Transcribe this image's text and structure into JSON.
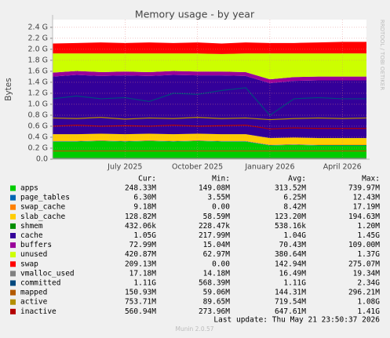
{
  "chart_data": {
    "type": "area",
    "title": "Memory usage - by year",
    "y_label": "Bytes",
    "side_text": "RRDTOOL / TOBI OETIKER",
    "x": [
      "2025-04",
      "2025-05",
      "2025-06",
      "2025-07",
      "2025-08",
      "2025-09",
      "2025-10",
      "2025-11",
      "2025-12",
      "2026-01",
      "2026-02",
      "2026-03",
      "2026-04",
      "2026-05"
    ],
    "xlim": [
      "2025-04",
      "2026-05"
    ],
    "xticks": [
      {
        "value": "2025-07",
        "label": "July 2025"
      },
      {
        "value": "2025-10",
        "label": "October 2025"
      },
      {
        "value": "2026-01",
        "label": "January 2026"
      },
      {
        "value": "2026-04",
        "label": "April 2026"
      }
    ],
    "ylim": [
      0,
      2.54
    ],
    "yticks": [
      {
        "value": 0,
        "label": "0.0"
      },
      {
        "value": 0.2,
        "label": "0.2 G"
      },
      {
        "value": 0.4,
        "label": "0.4 G"
      },
      {
        "value": 0.6,
        "label": "0.6 G"
      },
      {
        "value": 0.8,
        "label": "0.8 G"
      },
      {
        "value": 1,
        "label": "1.0 G"
      },
      {
        "value": 1.2,
        "label": "1.2 G"
      },
      {
        "value": 1.4,
        "label": "1.4 G"
      },
      {
        "value": 1.6,
        "label": "1.6 G"
      },
      {
        "value": 1.8,
        "label": "1.8 G"
      },
      {
        "value": 2,
        "label": "2.0 G"
      },
      {
        "value": 2.2,
        "label": "2.2 G"
      },
      {
        "value": 2.4,
        "label": "2.4 G"
      }
    ],
    "grid": true,
    "legend_columns": [
      "Cur:",
      "Min:",
      "Avg:",
      "Max:"
    ],
    "series": [
      {
        "name": "apps",
        "color": "#00cc00",
        "kind": "area",
        "values": [
          0.32,
          0.32,
          0.33,
          0.32,
          0.33,
          0.32,
          0.33,
          0.32,
          0.32,
          0.25,
          0.26,
          0.25,
          0.25,
          0.25
        ],
        "stats": [
          "248.33M",
          "149.08M",
          "313.52M",
          "739.97M"
        ]
      },
      {
        "name": "page_tables",
        "color": "#0066b3",
        "kind": "area",
        "values": [
          0.006,
          0.006,
          0.006,
          0.006,
          0.006,
          0.006,
          0.006,
          0.006,
          0.006,
          0.006,
          0.006,
          0.006,
          0.006,
          0.006
        ],
        "stats": [
          "6.30M",
          "3.55M",
          "6.25M",
          "12.43M"
        ]
      },
      {
        "name": "swap_cache",
        "color": "#ff8000",
        "kind": "area",
        "values": [
          0.008,
          0.008,
          0.008,
          0.008,
          0.008,
          0.008,
          0.008,
          0.008,
          0.008,
          0.008,
          0.008,
          0.008,
          0.008,
          0.008
        ],
        "stats": [
          "9.18M",
          "0.00",
          "8.42M",
          "17.19M"
        ]
      },
      {
        "name": "slab_cache",
        "color": "#ffcc00",
        "kind": "area",
        "values": [
          0.12,
          0.12,
          0.12,
          0.12,
          0.12,
          0.12,
          0.12,
          0.12,
          0.12,
          0.12,
          0.12,
          0.12,
          0.12,
          0.12
        ],
        "stats": [
          "128.82M",
          "58.59M",
          "123.20M",
          "194.63M"
        ]
      },
      {
        "name": "shmem",
        "color": "#008f00",
        "kind": "area",
        "values": [
          0.0005,
          0.0005,
          0.0005,
          0.0005,
          0.0005,
          0.0005,
          0.0005,
          0.0005,
          0.0005,
          0.0005,
          0.0005,
          0.0005,
          0.0005,
          0.0005
        ],
        "stats": [
          "432.06k",
          "228.47k",
          "538.16k",
          "1.20M"
        ]
      },
      {
        "name": "cache",
        "color": "#330099",
        "kind": "area",
        "values": [
          1.05,
          1.08,
          1.05,
          1.07,
          1.05,
          1.08,
          1.06,
          1.07,
          1.06,
          1.0,
          1.03,
          1.05,
          1.05,
          1.05
        ],
        "stats": [
          "1.05G",
          "217.99M",
          "1.04G",
          "1.45G"
        ]
      },
      {
        "name": "buffers",
        "color": "#990099",
        "kind": "area",
        "values": [
          0.07,
          0.07,
          0.07,
          0.07,
          0.07,
          0.07,
          0.07,
          0.07,
          0.07,
          0.07,
          0.07,
          0.07,
          0.07,
          0.07
        ],
        "stats": [
          "72.99M",
          "15.04M",
          "70.43M",
          "109.00M"
        ]
      },
      {
        "name": "unused",
        "color": "#ccff00",
        "kind": "area",
        "values": [
          0.35,
          0.32,
          0.34,
          0.33,
          0.34,
          0.32,
          0.33,
          0.32,
          0.34,
          0.47,
          0.43,
          0.42,
          0.42,
          0.42
        ],
        "stats": [
          "420.87M",
          "62.97M",
          "380.64M",
          "1.37G"
        ]
      },
      {
        "name": "swap",
        "color": "#ff0000",
        "kind": "area",
        "values": [
          0.18,
          0.19,
          0.2,
          0.19,
          0.2,
          0.19,
          0.2,
          0.19,
          0.2,
          0.19,
          0.19,
          0.2,
          0.21,
          0.21
        ],
        "stats": [
          "209.13M",
          "0.00",
          "142.94M",
          "275.07M"
        ]
      },
      {
        "name": "vmalloc_used",
        "color": "#808080",
        "kind": "line",
        "values": [
          0.017,
          0.017,
          0.017,
          0.017,
          0.017,
          0.017,
          0.017,
          0.017,
          0.017,
          0.017,
          0.017,
          0.017,
          0.017,
          0.017
        ],
        "stats": [
          "17.18M",
          "14.18M",
          "16.49M",
          "19.34M"
        ]
      },
      {
        "name": "committed",
        "color": "#00487d",
        "kind": "line",
        "values": [
          1.1,
          1.15,
          1.1,
          1.12,
          1.05,
          1.2,
          1.18,
          1.25,
          1.3,
          0.8,
          1.1,
          1.12,
          1.1,
          1.1
        ],
        "stats": [
          "1.11G",
          "568.39M",
          "1.11G",
          "2.34G"
        ]
      },
      {
        "name": "mapped",
        "color": "#b35a00",
        "kind": "line",
        "values": [
          0.15,
          0.15,
          0.15,
          0.15,
          0.15,
          0.15,
          0.15,
          0.15,
          0.15,
          0.15,
          0.15,
          0.15,
          0.15,
          0.15
        ],
        "stats": [
          "150.93M",
          "59.06M",
          "144.31M",
          "296.21M"
        ]
      },
      {
        "name": "active",
        "color": "#b38f00",
        "kind": "line",
        "values": [
          0.75,
          0.74,
          0.76,
          0.73,
          0.75,
          0.74,
          0.76,
          0.74,
          0.75,
          0.72,
          0.74,
          0.75,
          0.74,
          0.75
        ],
        "stats": [
          "753.71M",
          "89.65M",
          "719.54M",
          "1.08G"
        ]
      },
      {
        "name": "inactive",
        "color": "#b30000",
        "kind": "line",
        "values": [
          0.6,
          0.62,
          0.6,
          0.61,
          0.6,
          0.62,
          0.6,
          0.61,
          0.62,
          0.55,
          0.57,
          0.56,
          0.56,
          0.56
        ],
        "stats": [
          "560.94M",
          "273.96M",
          "647.61M",
          "1.41G"
        ]
      }
    ],
    "last_update": "Last update: Thu May 21 23:50:37 2026",
    "footer": "Munin 2.0.57"
  }
}
